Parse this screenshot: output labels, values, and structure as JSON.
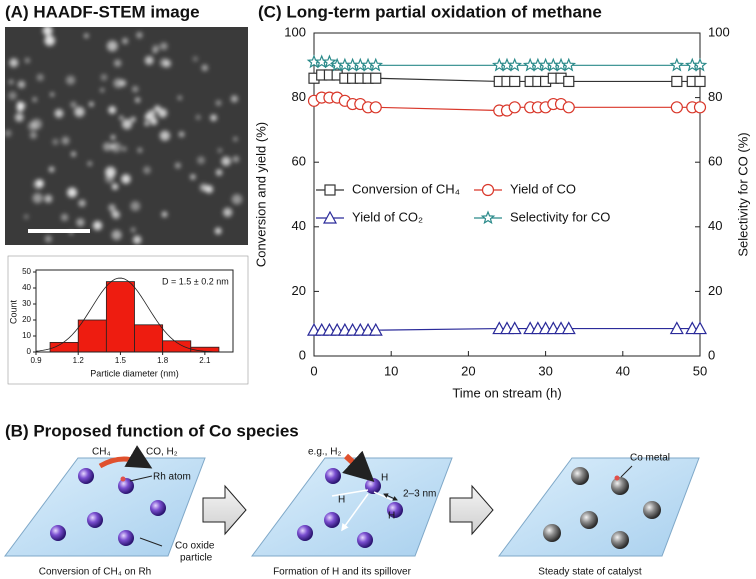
{
  "panel_a": {
    "title": "(A) HAADF-STEM image"
  },
  "panel_b": {
    "title": "(B) Proposed function of Co species",
    "steps": [
      {
        "caption": "Conversion of CH₄ on Rh",
        "labels": [
          "CH₄",
          "CO, H₂",
          "Rh atom",
          "Co oxide",
          "particle"
        ]
      },
      {
        "caption": "Formation of H and its spillover",
        "labels": [
          "e.g., H₂",
          "H",
          "H",
          "H",
          "2–3 nm"
        ]
      },
      {
        "caption": "Steady state of catalyst",
        "labels": [
          "Co metal"
        ]
      }
    ]
  },
  "chart_data": [
    {
      "type": "histogram",
      "xlabel": "Particle diameter (nm)",
      "ylabel": "Count",
      "annotation": "D = 1.5 ± 0.2 nm",
      "bins": [
        1.0,
        1.2,
        1.4,
        1.6,
        1.8,
        2.0,
        2.2
      ],
      "values": [
        6,
        20,
        44,
        17,
        7,
        3
      ],
      "color": "#ee1c10",
      "xlim": [
        0.9,
        2.3
      ],
      "xticks": [
        0.9,
        1.2,
        1.5,
        1.8,
        2.1
      ],
      "ylim": [
        0,
        50
      ],
      "yticks": [
        0,
        10,
        20,
        30,
        40,
        50
      ]
    },
    {
      "type": "line",
      "title": "(C) Long-term partial oxidation of methane",
      "xlabel": "Time on stream (h)",
      "ylabel": "Conversion and yield (%)",
      "y2label": "Selectivity for CO (%)",
      "x": [
        0,
        1,
        2,
        3,
        4,
        5,
        6,
        7,
        8,
        24,
        25,
        26,
        28,
        29,
        30,
        31,
        32,
        33,
        47,
        49,
        50
      ],
      "series": [
        {
          "name": "Conversion of CH₄",
          "color": "#333333",
          "marker": "square",
          "values": [
            86,
            87,
            87,
            87,
            86,
            86,
            86,
            86,
            86,
            85,
            85,
            85,
            85,
            85,
            85,
            86,
            86,
            85,
            85,
            85,
            85
          ]
        },
        {
          "name": "Yield of CO",
          "color": "#d9372a",
          "marker": "circle",
          "values": [
            79,
            80,
            80,
            80,
            79,
            78,
            78,
            77,
            77,
            76,
            76,
            77,
            77,
            77,
            77,
            78,
            78,
            77,
            77,
            77,
            77
          ]
        },
        {
          "name": "Yield of CO₂",
          "color": "#2b2b9a",
          "marker": "triangle",
          "values": [
            8,
            8,
            8,
            8,
            8,
            8,
            8,
            8,
            8,
            8.5,
            8.5,
            8.5,
            8.5,
            8.5,
            8.5,
            8.5,
            8.5,
            8.5,
            8.5,
            8.5,
            8.5
          ]
        },
        {
          "name": "Selectivity for CO",
          "color": "#2a8a8a",
          "marker": "star",
          "axis": "y2",
          "values": [
            91,
            91,
            91,
            90,
            90,
            90,
            90,
            90,
            90,
            90,
            90,
            90,
            90,
            90,
            90,
            90,
            90,
            90,
            90,
            90,
            90
          ]
        }
      ],
      "xlim": [
        0,
        50
      ],
      "xticks": [
        0,
        10,
        20,
        30,
        40,
        50
      ],
      "ylim": [
        0,
        100
      ],
      "yticks": [
        0,
        20,
        40,
        60,
        80,
        100
      ],
      "y2lim": [
        0,
        100
      ],
      "y2ticks": [
        0,
        20,
        40,
        60,
        80,
        100
      ]
    }
  ]
}
